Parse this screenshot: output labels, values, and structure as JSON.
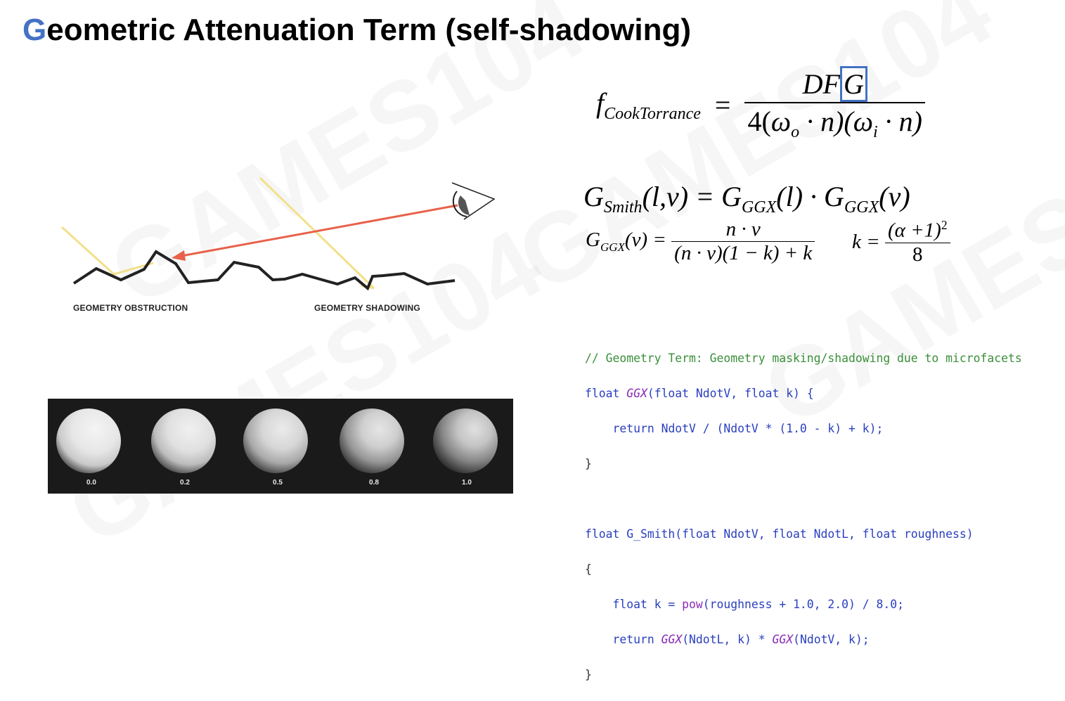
{
  "title": {
    "accent": "G",
    "rest": "eometric Attenuation Term (self-shadowing)"
  },
  "watermark": [
    "GAMES104",
    "GAMES104",
    "GAMES104",
    "GAMES104"
  ],
  "diagram": {
    "label_left": "GEOMETRY OBSTRUCTION",
    "label_right": "GEOMETRY SHADOWING",
    "icons": [
      "eye-icon"
    ]
  },
  "spheres": {
    "labels": [
      "0.0",
      "0.2",
      "0.5",
      "0.8",
      "1.0"
    ],
    "roughness": [
      0.0,
      0.2,
      0.5,
      0.8,
      1.0
    ]
  },
  "formulas": {
    "cook_torrance": {
      "lhs_f": "f",
      "lhs_sub": "CookTorrance",
      "eq": "=",
      "num_DF": "DF",
      "num_G": "G",
      "den": "4(ω·n)(ω·n)",
      "den_part1": "4(",
      "omega": "ω",
      "sub_o": "o",
      "dot_n1": " · n)(",
      "sub_i": "i",
      "dot_n2": " · n)"
    },
    "g_smith": {
      "G": "G",
      "sub_smith": "Smith",
      "args": "(l,v) = ",
      "sub_ggx": "GGX",
      "arg_l": "(l) · ",
      "arg_v": "(v)"
    },
    "g_ggx": {
      "G": "G",
      "sub": "GGX",
      "arg": "(v) = ",
      "num": "n · v",
      "den": "(n · v)(1 − k) + k"
    },
    "k": {
      "lhs": "k = ",
      "num": "(α +1)",
      "exp": "2",
      "den": "8"
    }
  },
  "code": {
    "lines": [
      "// Geometry Term: Geometry masking/shadowing due to microfacets",
      "float GGX(float NdotV, float k) {",
      "    return NdotV / (NdotV * (1.0 - k) + k);",
      "}",
      "",
      "float G_Smith(float NdotV, float NdotL, float roughness)",
      "{",
      "    float k = pow(roughness + 1.0, 2.0) / 8.0;",
      "    return GGX(NdotL, k) * GGX(NdotV, k);",
      "}"
    ],
    "tokens": {
      "comment": "// Geometry Term: Geometry masking/shadowing due to microfacets",
      "kw_float": "float",
      "fn_ggx": "GGX",
      "fn_gsmith": "G_Smith",
      "fn_pow": "pow",
      "kw_return": "return",
      "ggx_params": "(float NdotV, float k) {",
      "ret1": " NdotV / (NdotV * (1.0 - k) + k);",
      "brace_close": "}",
      "brace_open": "{",
      "gsmith_params": "(float NdotV, float NdotL, float roughness)",
      "k_decl": " k = ",
      "pow_args": "(roughness + 1.0, 2.0) / 8.0;",
      "ret2_a": "(NdotL, k) * ",
      "ret2_b": "(NdotV, k);"
    }
  },
  "colors": {
    "accent": "#4472c4",
    "ray_orange": "#e8614a",
    "ray_yellow": "#f2e08a",
    "comment_green": "#3a8f3a",
    "keyword_blue": "#2a3fbf",
    "function_purple": "#8a2bb5"
  }
}
